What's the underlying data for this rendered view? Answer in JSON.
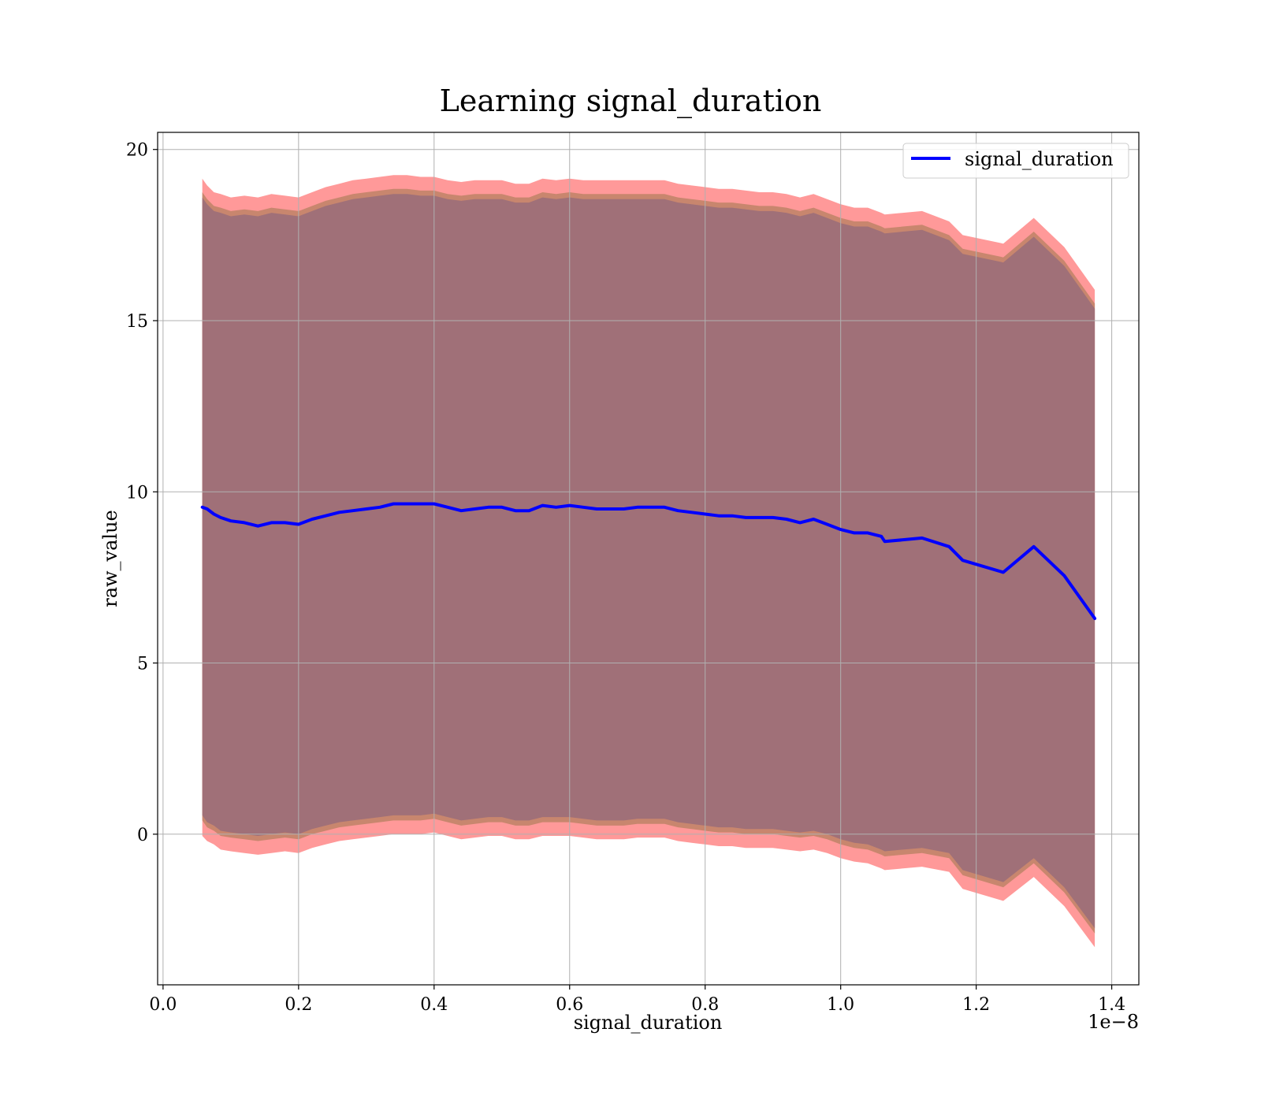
{
  "chart_data": {
    "type": "line",
    "title": "Learning signal_duration",
    "xlabel": "signal_duration",
    "ylabel": "raw_value",
    "x_offset_label": "1e−8",
    "xlim": [
      -0.008,
      1.44
    ],
    "ylim": [
      -4.4,
      20.5
    ],
    "x_ticks": [
      0.0,
      0.2,
      0.4,
      0.6,
      0.8,
      1.0,
      1.2,
      1.4
    ],
    "x_tick_labels": [
      "0.0",
      "0.2",
      "0.4",
      "0.6",
      "0.8",
      "1.0",
      "1.2",
      "1.4"
    ],
    "y_ticks": [
      0,
      5,
      10,
      15,
      20
    ],
    "y_tick_labels": [
      "0",
      "5",
      "10",
      "15",
      "20"
    ],
    "grid": true,
    "legend_position": "top-right",
    "colors": {
      "line": "#0000ff",
      "outer_band": "#ff9999",
      "middle_band": "#c8866e",
      "inner_band": "#a07078"
    },
    "series": [
      {
        "name": "signal_duration",
        "x": [
          0.058,
          0.065,
          0.075,
          0.085,
          0.1,
          0.12,
          0.14,
          0.16,
          0.18,
          0.2,
          0.22,
          0.24,
          0.26,
          0.28,
          0.3,
          0.32,
          0.34,
          0.36,
          0.38,
          0.4,
          0.42,
          0.44,
          0.46,
          0.48,
          0.5,
          0.52,
          0.54,
          0.56,
          0.58,
          0.6,
          0.62,
          0.64,
          0.66,
          0.68,
          0.7,
          0.72,
          0.74,
          0.76,
          0.78,
          0.8,
          0.82,
          0.84,
          0.86,
          0.88,
          0.9,
          0.92,
          0.94,
          0.96,
          0.98,
          1.0,
          1.02,
          1.04,
          1.06,
          1.065,
          1.12,
          1.16,
          1.18,
          1.24,
          1.285,
          1.33,
          1.375
        ],
        "y": [
          9.55,
          9.5,
          9.35,
          9.25,
          9.15,
          9.1,
          9.0,
          9.1,
          9.1,
          9.05,
          9.2,
          9.3,
          9.4,
          9.45,
          9.5,
          9.55,
          9.65,
          9.65,
          9.65,
          9.65,
          9.55,
          9.45,
          9.5,
          9.55,
          9.55,
          9.45,
          9.45,
          9.6,
          9.55,
          9.6,
          9.55,
          9.5,
          9.5,
          9.5,
          9.55,
          9.55,
          9.55,
          9.45,
          9.4,
          9.35,
          9.3,
          9.3,
          9.25,
          9.25,
          9.25,
          9.2,
          9.1,
          9.2,
          9.05,
          8.9,
          8.8,
          8.8,
          8.7,
          8.55,
          8.65,
          8.4,
          8.0,
          7.65,
          8.4,
          7.55,
          6.3
        ],
        "band_outer_upper": [
          19.15,
          18.95,
          18.75,
          18.7,
          18.6,
          18.65,
          18.6,
          18.7,
          18.65,
          18.6,
          18.75,
          18.9,
          19.0,
          19.1,
          19.15,
          19.2,
          19.25,
          19.25,
          19.2,
          19.2,
          19.1,
          19.05,
          19.1,
          19.1,
          19.1,
          19.0,
          19.0,
          19.15,
          19.1,
          19.15,
          19.1,
          19.1,
          19.1,
          19.1,
          19.1,
          19.1,
          19.1,
          19.0,
          18.95,
          18.9,
          18.85,
          18.85,
          18.8,
          18.75,
          18.75,
          18.7,
          18.6,
          18.7,
          18.55,
          18.4,
          18.3,
          18.3,
          18.15,
          18.1,
          18.2,
          17.9,
          17.5,
          17.25,
          18.0,
          17.15,
          15.9
        ],
        "band_outer_lower": [
          -0.05,
          -0.2,
          -0.3,
          -0.45,
          -0.5,
          -0.55,
          -0.6,
          -0.55,
          -0.5,
          -0.55,
          -0.4,
          -0.3,
          -0.2,
          -0.15,
          -0.1,
          -0.05,
          0.0,
          0.0,
          0.0,
          0.05,
          -0.05,
          -0.15,
          -0.1,
          -0.05,
          -0.05,
          -0.15,
          -0.15,
          -0.05,
          -0.05,
          -0.05,
          -0.1,
          -0.15,
          -0.15,
          -0.15,
          -0.1,
          -0.1,
          -0.1,
          -0.2,
          -0.25,
          -0.3,
          -0.35,
          -0.35,
          -0.4,
          -0.4,
          -0.4,
          -0.45,
          -0.5,
          -0.45,
          -0.55,
          -0.7,
          -0.8,
          -0.85,
          -1.0,
          -1.05,
          -0.95,
          -1.1,
          -1.6,
          -1.95,
          -1.25,
          -2.1,
          -3.3
        ],
        "band_middle_upper": [
          18.75,
          18.55,
          18.35,
          18.3,
          18.2,
          18.25,
          18.2,
          18.3,
          18.25,
          18.2,
          18.35,
          18.5,
          18.6,
          18.7,
          18.75,
          18.8,
          18.85,
          18.85,
          18.8,
          18.8,
          18.7,
          18.65,
          18.7,
          18.7,
          18.7,
          18.6,
          18.6,
          18.75,
          18.7,
          18.75,
          18.7,
          18.7,
          18.7,
          18.7,
          18.7,
          18.7,
          18.7,
          18.6,
          18.55,
          18.5,
          18.45,
          18.45,
          18.4,
          18.35,
          18.35,
          18.3,
          18.2,
          18.3,
          18.15,
          18.0,
          17.9,
          17.9,
          17.75,
          17.7,
          17.8,
          17.5,
          17.1,
          16.85,
          17.6,
          16.75,
          15.5
        ],
        "band_middle_lower": [
          0.4,
          0.2,
          0.1,
          -0.05,
          -0.1,
          -0.15,
          -0.2,
          -0.15,
          -0.1,
          -0.15,
          0.0,
          0.1,
          0.2,
          0.25,
          0.3,
          0.35,
          0.4,
          0.4,
          0.4,
          0.45,
          0.35,
          0.25,
          0.3,
          0.35,
          0.35,
          0.25,
          0.25,
          0.35,
          0.35,
          0.35,
          0.3,
          0.25,
          0.25,
          0.25,
          0.3,
          0.3,
          0.3,
          0.2,
          0.15,
          0.1,
          0.05,
          0.05,
          0.0,
          0.0,
          0.0,
          -0.05,
          -0.1,
          -0.05,
          -0.15,
          -0.3,
          -0.4,
          -0.45,
          -0.6,
          -0.65,
          -0.55,
          -0.7,
          -1.2,
          -1.55,
          -0.85,
          -1.7,
          -2.9
        ],
        "band_inner_upper": [
          18.6,
          18.4,
          18.2,
          18.15,
          18.05,
          18.1,
          18.05,
          18.15,
          18.1,
          18.05,
          18.2,
          18.35,
          18.45,
          18.55,
          18.6,
          18.65,
          18.7,
          18.7,
          18.65,
          18.65,
          18.55,
          18.5,
          18.55,
          18.55,
          18.55,
          18.45,
          18.45,
          18.6,
          18.55,
          18.6,
          18.55,
          18.55,
          18.55,
          18.55,
          18.55,
          18.55,
          18.55,
          18.45,
          18.4,
          18.35,
          18.3,
          18.3,
          18.25,
          18.2,
          18.2,
          18.15,
          18.05,
          18.15,
          18.0,
          17.85,
          17.75,
          17.75,
          17.6,
          17.55,
          17.65,
          17.35,
          16.95,
          16.7,
          17.45,
          16.6,
          15.35
        ],
        "band_inner_lower": [
          0.55,
          0.35,
          0.25,
          0.1,
          0.05,
          0.0,
          -0.05,
          0.0,
          0.05,
          0.0,
          0.15,
          0.25,
          0.35,
          0.4,
          0.45,
          0.5,
          0.55,
          0.55,
          0.55,
          0.6,
          0.5,
          0.4,
          0.45,
          0.5,
          0.5,
          0.4,
          0.4,
          0.5,
          0.5,
          0.5,
          0.45,
          0.4,
          0.4,
          0.4,
          0.45,
          0.45,
          0.45,
          0.35,
          0.3,
          0.25,
          0.2,
          0.2,
          0.15,
          0.15,
          0.15,
          0.1,
          0.05,
          0.1,
          0.0,
          -0.15,
          -0.25,
          -0.3,
          -0.45,
          -0.5,
          -0.4,
          -0.55,
          -1.05,
          -1.4,
          -0.7,
          -1.55,
          -2.75
        ]
      }
    ]
  }
}
